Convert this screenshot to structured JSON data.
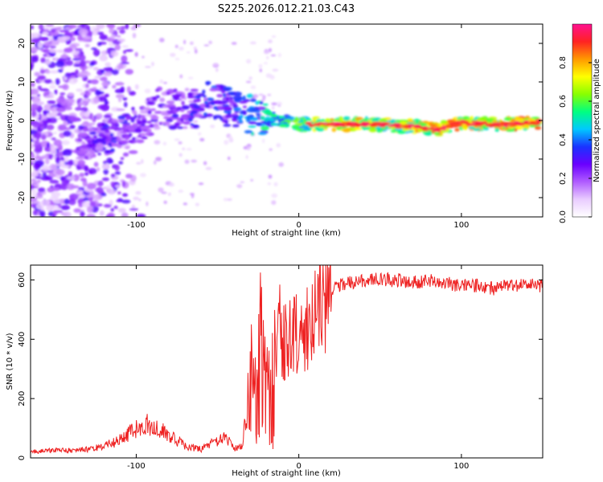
{
  "title": "S225.2026.012.21.03.C43",
  "colors": {
    "snr_line": "#ee2222",
    "frame": "#000000",
    "scale_ramp": [
      "#ffffff",
      "#e9ccff",
      "#b05cff",
      "#6a00ff",
      "#1a33ff",
      "#00c8ff",
      "#00ff80",
      "#88ff00",
      "#ffff00",
      "#ff9900",
      "#ff2222",
      "#ff1190"
    ]
  },
  "chart_data": [
    {
      "type": "heatmap",
      "title": "S225.2026.012.21.03.C43",
      "xlabel": "Height of straight line (km)",
      "ylabel": "Frequency (Hz)",
      "xlim": [
        -165,
        150
      ],
      "ylim": [
        -25,
        25
      ],
      "xticks": [
        -100,
        0,
        100
      ],
      "yticks": [
        -20,
        -10,
        0,
        10,
        20
      ],
      "colorbar": {
        "label": "Normalized spectral amplitude",
        "range": [
          0.0,
          1.0
        ],
        "ticks": [
          "0.0",
          "0.2",
          "0.4",
          "0.6",
          "0.8"
        ]
      },
      "ridge_points": [
        {
          "x": -130,
          "y": -5,
          "amp": 0.3
        },
        {
          "x": -115,
          "y": -3,
          "amp": 0.35
        },
        {
          "x": -95,
          "y": -1,
          "amp": 0.3
        },
        {
          "x": -85,
          "y": 4,
          "amp": 0.3
        },
        {
          "x": -68,
          "y": 2,
          "amp": 0.35
        },
        {
          "x": -55,
          "y": 5,
          "amp": 0.4
        },
        {
          "x": -40,
          "y": 3,
          "amp": 0.4
        },
        {
          "x": -25,
          "y": 1,
          "amp": 0.55
        },
        {
          "x": -10,
          "y": 0,
          "amp": 0.6
        },
        {
          "x": 0,
          "y": -1,
          "amp": 0.7
        },
        {
          "x": 10,
          "y": -1,
          "amp": 0.8
        },
        {
          "x": 30,
          "y": -1,
          "amp": 0.85
        },
        {
          "x": 50,
          "y": -1,
          "amp": 0.75
        },
        {
          "x": 65,
          "y": -1.5,
          "amp": 0.8
        },
        {
          "x": 75,
          "y": -1.5,
          "amp": 0.9
        },
        {
          "x": 85,
          "y": -2.5,
          "amp": 0.95
        },
        {
          "x": 100,
          "y": -0.5,
          "amp": 0.9
        },
        {
          "x": 115,
          "y": -1,
          "amp": 0.85
        },
        {
          "x": 130,
          "y": -1,
          "amp": 0.9
        },
        {
          "x": 145,
          "y": -0.5,
          "amp": 0.95
        }
      ]
    },
    {
      "type": "line",
      "xlabel": "Height of straight line (km)",
      "ylabel": "SNR (10 * v/v)",
      "xlim": [
        -165,
        150
      ],
      "ylim": [
        0,
        650
      ],
      "xticks": [
        -100,
        0,
        100
      ],
      "yticks": [
        0,
        200,
        400,
        600
      ],
      "series": [
        {
          "name": "SNR",
          "x": [
            -165,
            -150,
            -140,
            -130,
            -120,
            -110,
            -100,
            -95,
            -90,
            -85,
            -80,
            -75,
            -70,
            -60,
            -50,
            -45,
            -40,
            -35,
            -32,
            -30,
            -28,
            -25,
            -22,
            -20,
            -18,
            -15,
            -12,
            -10,
            -5,
            0,
            5,
            10,
            15,
            20,
            25,
            30,
            40,
            50,
            60,
            70,
            80,
            90,
            100,
            110,
            120,
            130,
            140,
            150
          ],
          "values": [
            20,
            25,
            25,
            30,
            40,
            60,
            100,
            110,
            110,
            100,
            80,
            60,
            40,
            30,
            60,
            70,
            30,
            40,
            150,
            400,
            300,
            350,
            500,
            300,
            280,
            400,
            450,
            380,
            400,
            420,
            450,
            470,
            530,
            560,
            580,
            590,
            600,
            600,
            600,
            590,
            600,
            590,
            580,
            580,
            570,
            580,
            585,
            580
          ]
        }
      ]
    }
  ]
}
